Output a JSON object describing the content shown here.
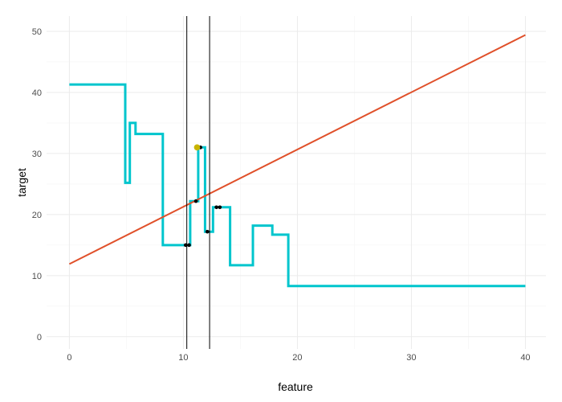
{
  "chart_data": {
    "type": "line",
    "title": "",
    "xlabel": "feature",
    "ylabel": "target",
    "xlim": [
      -2,
      41.8
    ],
    "ylim": [
      -2,
      52.5
    ],
    "x_ticks": [
      0,
      10,
      20,
      30,
      40
    ],
    "y_ticks": [
      0,
      10,
      20,
      30,
      40,
      50
    ],
    "grid": true,
    "legend": "none",
    "colors": {
      "step": "#00C5CD",
      "fit": "#E0502A",
      "points": "#000000",
      "highlight": "#C8B400",
      "vline": "#000000",
      "grid_major": "#EBEBEB",
      "grid_minor": "#F5F5F5"
    },
    "series": [
      {
        "kind": "step",
        "values": [
          [
            0,
            41.3
          ],
          [
            4.9,
            41.3
          ],
          [
            4.9,
            25.2
          ],
          [
            5.3,
            25.2
          ],
          [
            5.3,
            35.0
          ],
          [
            5.8,
            35.0
          ],
          [
            5.8,
            33.2
          ],
          [
            8.2,
            33.2
          ],
          [
            8.2,
            15.0
          ],
          [
            10.6,
            15.0
          ],
          [
            10.6,
            22.2
          ],
          [
            11.3,
            22.2
          ],
          [
            11.3,
            31.0
          ],
          [
            11.9,
            31.0
          ],
          [
            11.9,
            17.2
          ],
          [
            12.6,
            17.2
          ],
          [
            12.6,
            21.2
          ],
          [
            14.1,
            21.2
          ],
          [
            14.1,
            11.7
          ],
          [
            16.1,
            11.7
          ],
          [
            16.1,
            18.2
          ],
          [
            17.8,
            18.2
          ],
          [
            17.8,
            16.7
          ],
          [
            19.2,
            16.7
          ],
          [
            19.2,
            8.3
          ],
          [
            40,
            8.3
          ]
        ]
      },
      {
        "kind": "line",
        "values": [
          [
            0,
            11.9
          ],
          [
            40,
            49.4
          ]
        ]
      }
    ],
    "points": [
      [
        10.2,
        15.0
      ],
      [
        10.5,
        15.0
      ],
      [
        11.1,
        22.2
      ],
      [
        11.5,
        31.0
      ],
      [
        12.1,
        17.2
      ],
      [
        12.9,
        21.2
      ],
      [
        13.2,
        21.2
      ]
    ],
    "highlight_point": [
      11.2,
      31.0
    ],
    "vlines": [
      10.3,
      12.3
    ]
  }
}
